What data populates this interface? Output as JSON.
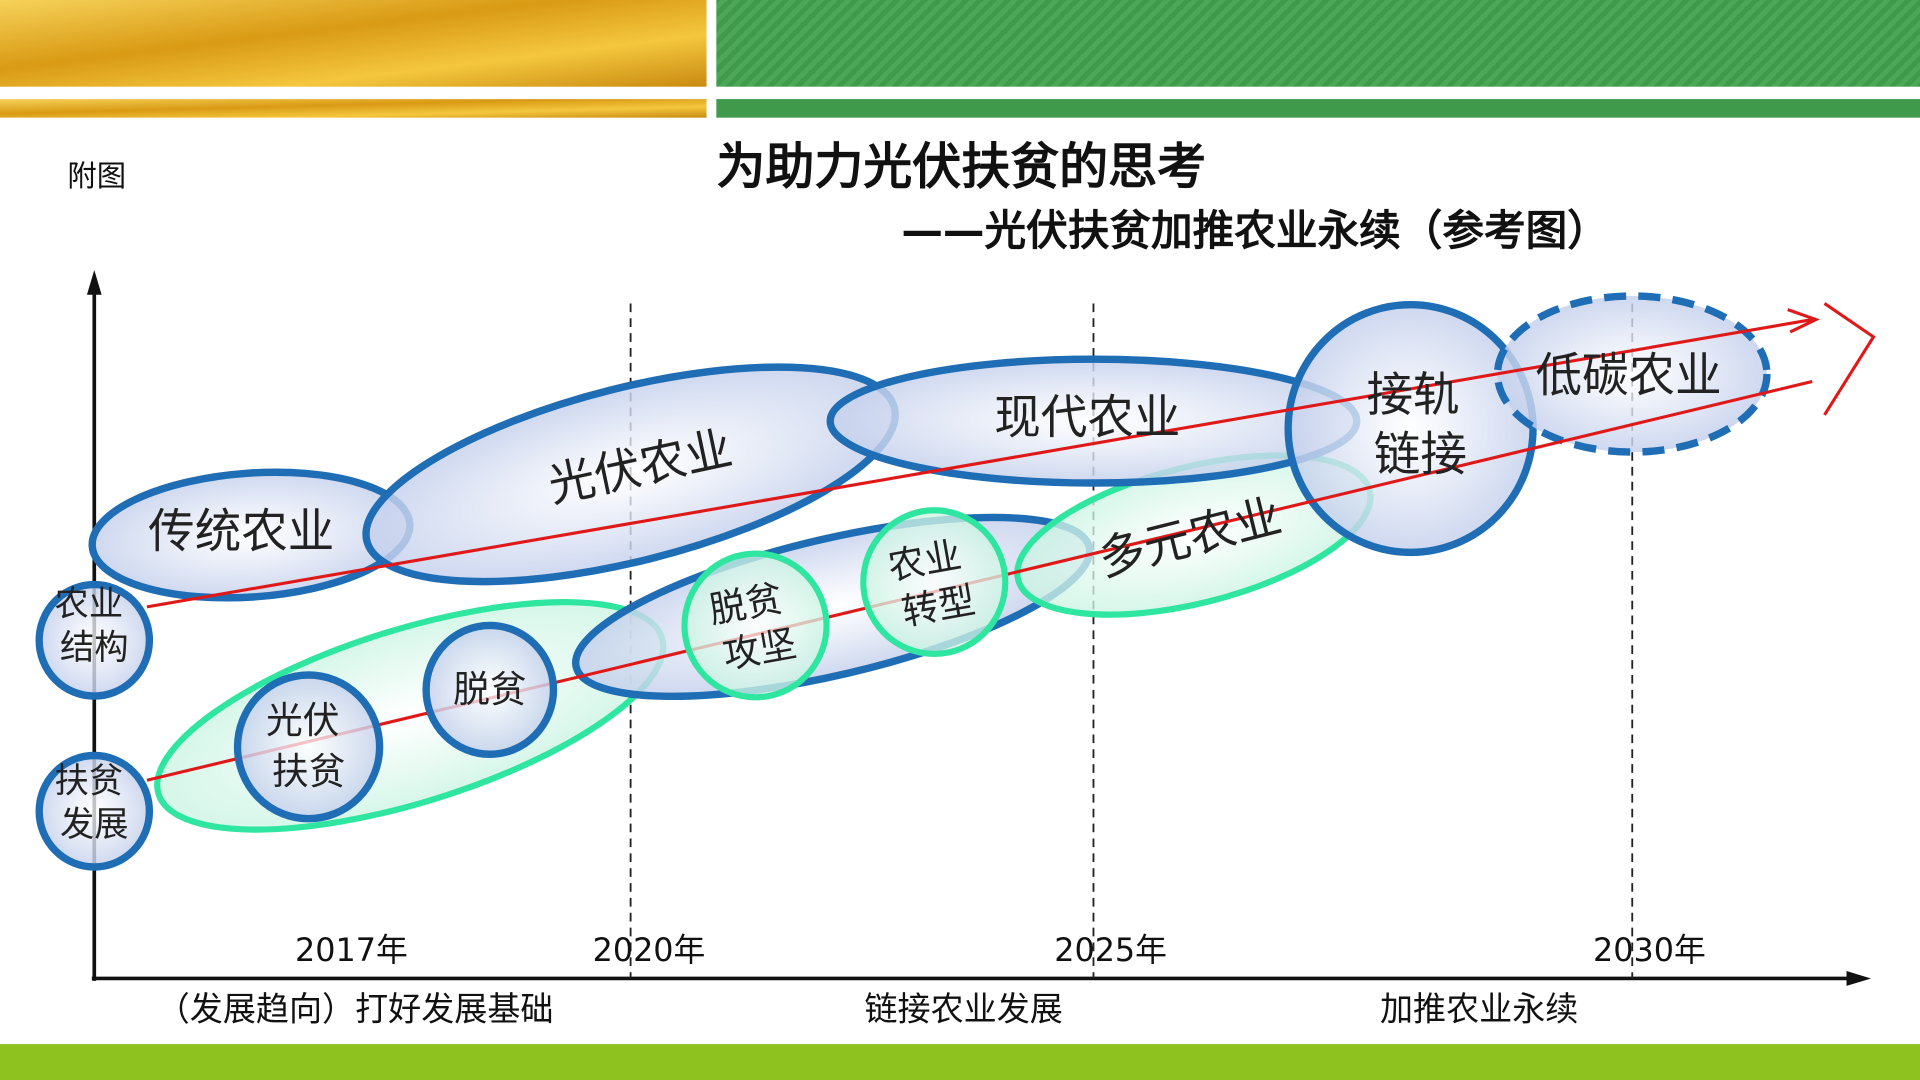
{
  "header": {
    "note": "附图",
    "title": "为助力光伏扶贫的思考",
    "subtitle": "——光伏扶贫加推农业永续（参考图）"
  },
  "nodes": [
    {
      "lines": [
        "传统农业"
      ]
    },
    {
      "lines": [
        "光伏农业"
      ]
    },
    {
      "lines": [
        "现代农业"
      ]
    },
    {
      "lines": [
        "接轨",
        "链接"
      ]
    },
    {
      "lines": [
        "低碳农业"
      ]
    },
    {
      "lines": [
        "多元农业"
      ]
    },
    {
      "lines": [
        "农业",
        "结构"
      ]
    },
    {
      "lines": [
        "扶贫",
        "发展"
      ]
    },
    {
      "lines": [
        "光伏",
        "扶贫"
      ]
    },
    {
      "lines": [
        "脱贫"
      ]
    },
    {
      "lines": [
        "脱贫",
        "攻坚"
      ]
    },
    {
      "lines": [
        "农业",
        "转型"
      ]
    }
  ],
  "years": [
    "2017年",
    "2020年",
    "2025年",
    "2030年"
  ],
  "phases": [
    "（发展趋向）打好发展基础",
    "链接农业发展",
    "加推农业永续"
  ]
}
